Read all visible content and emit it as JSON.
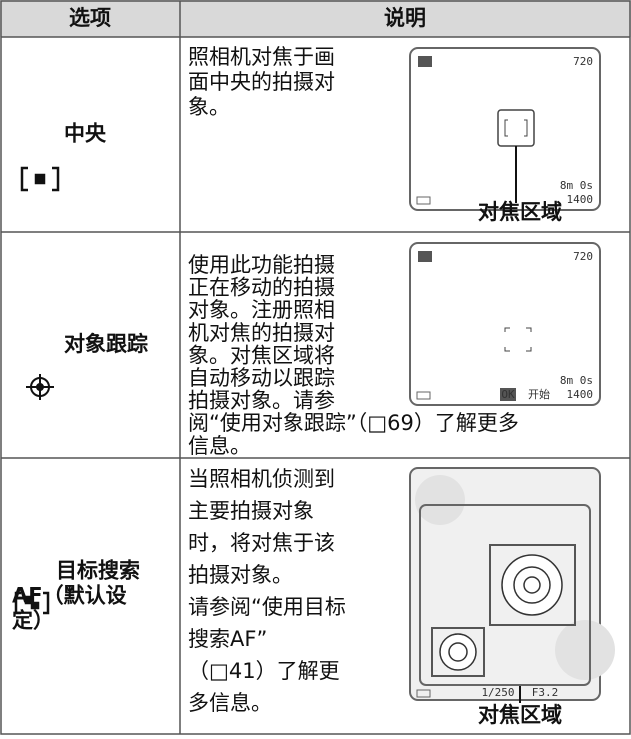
{
  "table": {
    "header": [
      "选项",
      "说明"
    ],
    "rows": [
      {
        "option": [
          "中央"
        ],
        "description": [
          "照相机对焦于画",
          "面中央的拍摄对",
          "象。"
        ],
        "screen": [
          "720",
          "8m 0s",
          "1400"
        ],
        "caption": "对焦区域"
      },
      {
        "option": [
          "对象跟踪"
        ],
        "description": [
          "使用此功能拍摄",
          "正在移动的拍摄",
          "对象。注册照相",
          "机对焦的拍摄对",
          "象。对焦区域将",
          "自动移动以跟踪",
          "拍摄对象。请参",
          "阅“使用对象跟踪”（□69）了解更多",
          "信息。"
        ],
        "screen": [
          "720",
          "8m 0s",
          "1400",
          "OK",
          "开始"
        ]
      },
      {
        "option": [
          "目标搜索",
          "AF（默认设",
          "定）"
        ],
        "description": [
          "当照相机侦测到",
          "主要拍摄对象",
          "时，将对焦于该",
          "拍摄对象。",
          "请参阅“使用目标",
          "搜索AF”",
          "（□41）了解更",
          "多信息。"
        ],
        "screen": [
          "1/250",
          "F3.2"
        ],
        "caption": "对焦区域"
      }
    ]
  }
}
